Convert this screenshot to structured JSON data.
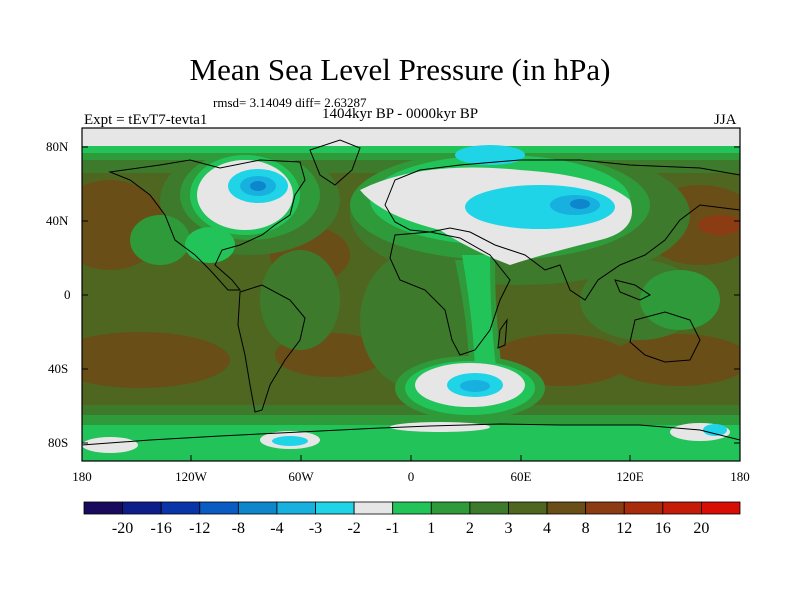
{
  "title": "Mean Sea Level Pressure (in hPa)",
  "stats": "rmsd= 3.14049 diff= 2.63287",
  "experiment": "Expt = tEvT7-tevta1",
  "period": "1404kyr BP - 0000kyr BP",
  "season": "JJA",
  "axes": {
    "y_ticks": [
      "80N",
      "40N",
      "0",
      "40S",
      "80S"
    ],
    "x_ticks": [
      "180",
      "120W",
      "60W",
      "0",
      "60E",
      "120E",
      "180"
    ]
  },
  "colorbar": {
    "colors": [
      "#1a0a5e",
      "#0d1d8a",
      "#0a35a8",
      "#0b5cc2",
      "#0e86cc",
      "#18b0df",
      "#1fd4e6",
      "#e6e6e6",
      "#22c45a",
      "#2f9a3a",
      "#3e7a2c",
      "#4e6620",
      "#6a4e18",
      "#8c3c12",
      "#a82c0c",
      "#c41c08",
      "#d80e06"
    ],
    "labels": [
      "-20",
      "-16",
      "-12",
      "-8",
      "-4",
      "-3",
      "-2",
      "-1",
      "1",
      "2",
      "3",
      "4",
      "8",
      "12",
      "16",
      "20"
    ]
  },
  "palette": {
    "background_field": "#4e6620",
    "level_3": "#3e7a2c",
    "level_2": "#2f9a3a",
    "level_1": "#22c45a",
    "near_zero": "#e6e6e6",
    "neg_2": "#1fd4e6",
    "neg_3": "#18b0df",
    "neg_4": "#0e86cc",
    "level_8": "#6a4e18"
  }
}
